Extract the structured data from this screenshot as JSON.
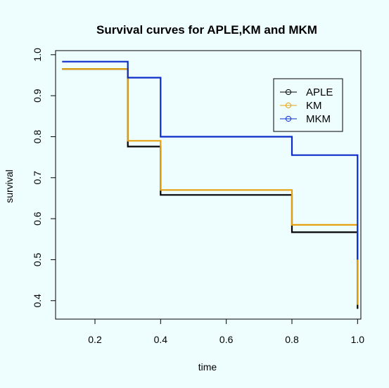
{
  "chart_data": {
    "type": "line",
    "step": true,
    "title": "Survival curves for APLE,KM and MKM",
    "xlabel": "time",
    "ylabel": "survival",
    "xlim": [
      0.08,
      1.01
    ],
    "ylim": [
      0.355,
      1.01
    ],
    "xticks": [
      0.2,
      0.4,
      0.6,
      0.8,
      1.0
    ],
    "xtick_labels": [
      "0.2",
      "0.4",
      "0.6",
      "0.8",
      "1.0"
    ],
    "yticks": [
      0.4,
      0.5,
      0.6,
      0.7,
      0.8,
      0.9,
      1.0
    ],
    "ytick_labels": [
      "0.4",
      "0.5",
      "0.6",
      "0.7",
      "0.8",
      "0.9",
      "1.0"
    ],
    "grid": false,
    "legend_position": "top-right",
    "series": [
      {
        "name": "APLE",
        "color": "#000000",
        "x": [
          0.1,
          0.3,
          0.3,
          0.4,
          0.4,
          0.8,
          0.8,
          1.0,
          1.0
        ],
        "y": [
          0.965,
          0.965,
          0.776,
          0.776,
          0.658,
          0.658,
          0.567,
          0.567,
          0.38
        ]
      },
      {
        "name": "KM",
        "color": "#e6a00f",
        "x": [
          0.1,
          0.3,
          0.3,
          0.4,
          0.4,
          0.8,
          0.8,
          1.0,
          1.0
        ],
        "y": [
          0.965,
          0.965,
          0.79,
          0.79,
          0.67,
          0.67,
          0.585,
          0.585,
          0.39
        ]
      },
      {
        "name": "MKM",
        "color": "#0a2cc8",
        "x": [
          0.1,
          0.3,
          0.3,
          0.4,
          0.4,
          0.8,
          0.8,
          1.0,
          1.0
        ],
        "y": [
          0.983,
          0.983,
          0.944,
          0.944,
          0.8,
          0.8,
          0.755,
          0.755,
          0.5
        ]
      }
    ]
  }
}
